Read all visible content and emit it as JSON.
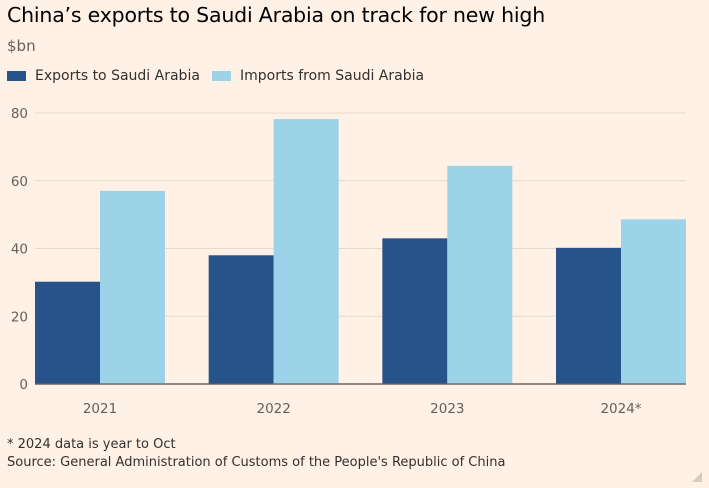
{
  "chart_data": {
    "type": "bar",
    "title": "China’s exports to Saudi Arabia on track for new high",
    "unit_label": "$bn",
    "categories": [
      "2021",
      "2022",
      "2023",
      "2024*"
    ],
    "series": [
      {
        "name": "Exports to Saudi Arabia",
        "color": "#26538A",
        "values": [
          30.2,
          38,
          43,
          40.2
        ]
      },
      {
        "name": "Imports from Saudi Arabia",
        "color": "#9DD3E8",
        "values": [
          57,
          78.2,
          64.4,
          48.6
        ]
      }
    ],
    "ylim": [
      0,
      80
    ],
    "yticks": [
      0,
      20,
      40,
      60,
      80
    ],
    "gridlines": true,
    "legend_position": "top-left"
  },
  "footnote": "* 2024 data is year to Oct",
  "source": "Source: General Administration of Customs of the People's Republic of China",
  "colors": {
    "background": "#FFF1E5",
    "gridline": "#E6D9CE",
    "baseline": "#66605C"
  }
}
